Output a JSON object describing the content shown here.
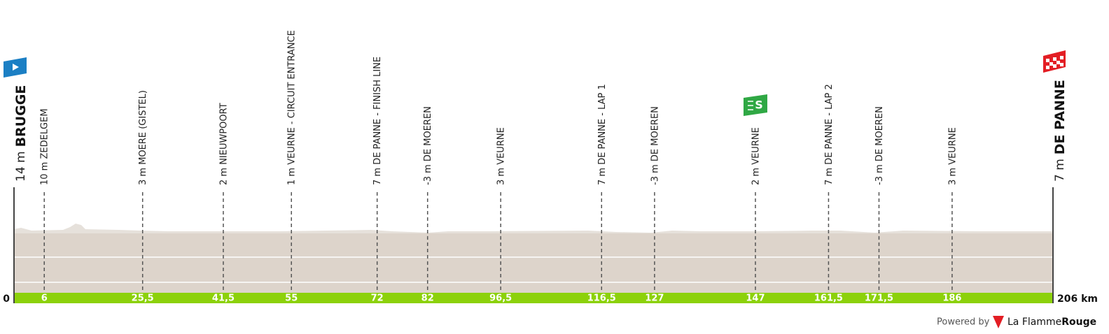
{
  "chart_data": {
    "type": "profile",
    "xlim": [
      0,
      206
    ],
    "xticks": [
      0,
      {
        "value": 206,
        "label": "206 km"
      }
    ],
    "start": {
      "altitude": "14 m",
      "name": "BRUGGE"
    },
    "finish": {
      "altitude": "7 m",
      "name": "DE PANNE"
    },
    "waypoints": [
      {
        "km": 6,
        "label": "10 m ZEDELGEM"
      },
      {
        "km": {
          "value": 25.5,
          "label": "25,5"
        },
        "label": "3 m MOERE (GISTEL)"
      },
      {
        "km": {
          "value": 41.5,
          "label": "41,5"
        },
        "label": "2 m NIEUWPOORT"
      },
      {
        "km": 55,
        "label": "1 m VEURNE - CIRCUIT ENTRANCE"
      },
      {
        "km": 72,
        "label": "7 m DE PANNE - FINISH LINE"
      },
      {
        "km": 82,
        "label": "-3 m DE MOEREN"
      },
      {
        "km": {
          "value": 96.5,
          "label": "96,5"
        },
        "label": "3 m VEURNE"
      },
      {
        "km": {
          "value": 116.5,
          "label": "116,5"
        },
        "label": "7 m DE PANNE - LAP 1"
      },
      {
        "km": 127,
        "label": "-3 m DE MOEREN"
      },
      {
        "km": 147,
        "label": "2 m VEURNE",
        "icon": "S"
      },
      {
        "km": {
          "value": 161.5,
          "label": "161,5"
        },
        "label": "7 m DE PANNE - LAP 2"
      },
      {
        "km": {
          "value": 171.5,
          "label": "171,5"
        },
        "label": "-3 m DE MOEREN"
      },
      {
        "km": 186,
        "label": "3 m VEURNE"
      }
    ],
    "footer": {
      "powered": "Powered by",
      "brand1": "La Flamme",
      "brand2": "Rouge"
    }
  }
}
